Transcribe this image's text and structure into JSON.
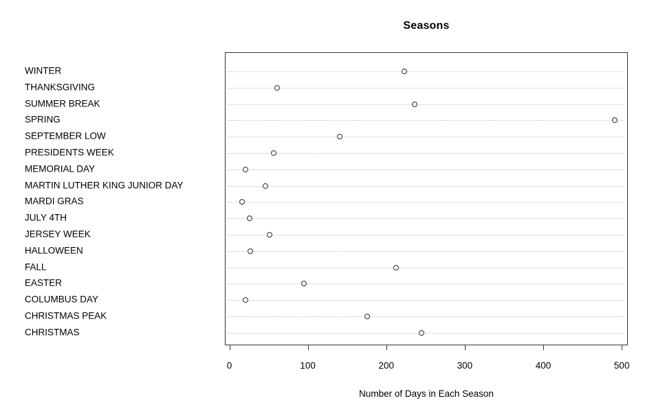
{
  "title": "Seasons",
  "colors": {
    "background": "#ffffff",
    "box_border": "#333333",
    "gridline": "#c4c4c4",
    "point_stroke": "#2b2b2b",
    "point_fill": "#ffffff",
    "text": "#000000"
  },
  "chart_data": {
    "type": "scatter",
    "subtype": "dotchart",
    "title": "Seasons",
    "xlabel": "Number of Days in Each Season",
    "ylabel": "",
    "xlim": [
      0,
      500
    ],
    "xticks": [
      "0",
      "100",
      "200",
      "300",
      "400",
      "500"
    ],
    "xtick_values": [
      0,
      100,
      200,
      300,
      400,
      500
    ],
    "grid": "horizontal dotted lines per category",
    "legend": "none",
    "point_style": "open-circle",
    "categories_top_to_bottom": [
      "WINTER",
      "THANKSGIVING",
      "SUMMER BREAK",
      "SPRING",
      "SEPTEMBER LOW",
      "PRESIDENTS WEEK",
      "MEMORIAL DAY",
      "MARTIN LUTHER KING JUNIOR DAY",
      "MARDI GRAS",
      "JULY 4TH",
      "JERSEY WEEK",
      "HALLOWEEN",
      "FALL",
      "EASTER",
      "COLUMBUS DAY",
      "CHRISTMAS PEAK",
      "CHRISTMAS"
    ],
    "values": [
      222,
      60,
      235,
      490,
      140,
      56,
      20,
      45,
      15,
      25,
      50,
      26,
      212,
      94,
      20,
      175,
      244
    ]
  }
}
